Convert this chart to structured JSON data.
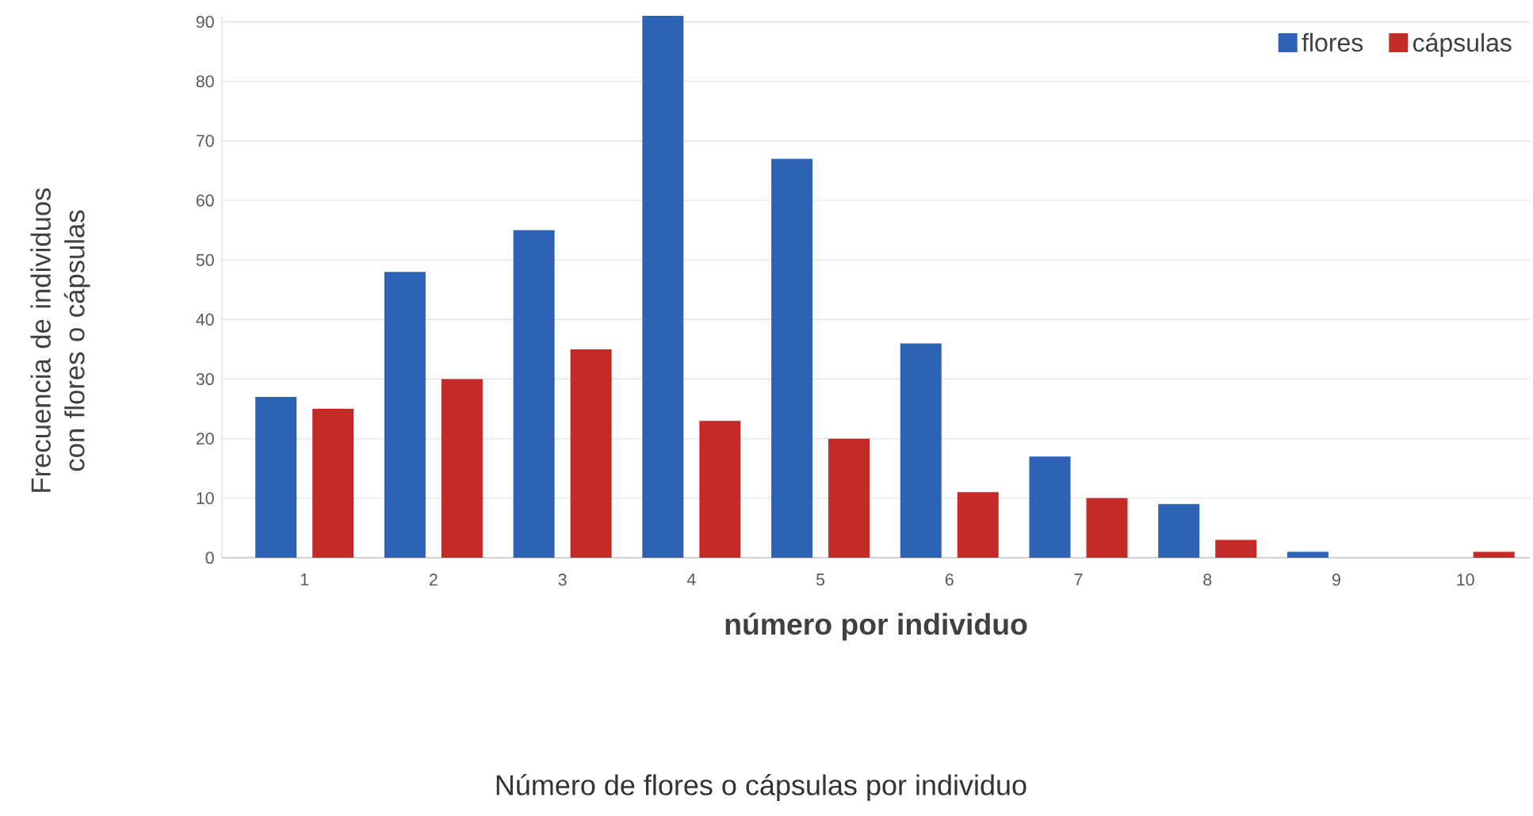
{
  "chart_data": {
    "type": "bar",
    "categories": [
      "1",
      "2",
      "3",
      "4",
      "5",
      "6",
      "7",
      "8",
      "9",
      "10"
    ],
    "series": [
      {
        "name": "flores",
        "color": "#2e62b5",
        "values": [
          27,
          48,
          55,
          91,
          67,
          36,
          17,
          9,
          1,
          0
        ]
      },
      {
        "name": "cápsulas",
        "color": "#c42a26",
        "values": [
          25,
          30,
          35,
          23,
          20,
          11,
          10,
          3,
          0,
          1
        ]
      }
    ],
    "xlabel": "número por individuo",
    "ylabel": "Frecuencia de individuos con flores o cápsulas",
    "annotations": [
      "Número de flores  o cápsulas por individuo"
    ],
    "ylim": [
      0,
      91
    ],
    "yticks": [
      0,
      10,
      20,
      30,
      40,
      50,
      60,
      70,
      80,
      90
    ],
    "grid": "y",
    "legend": "top right"
  }
}
